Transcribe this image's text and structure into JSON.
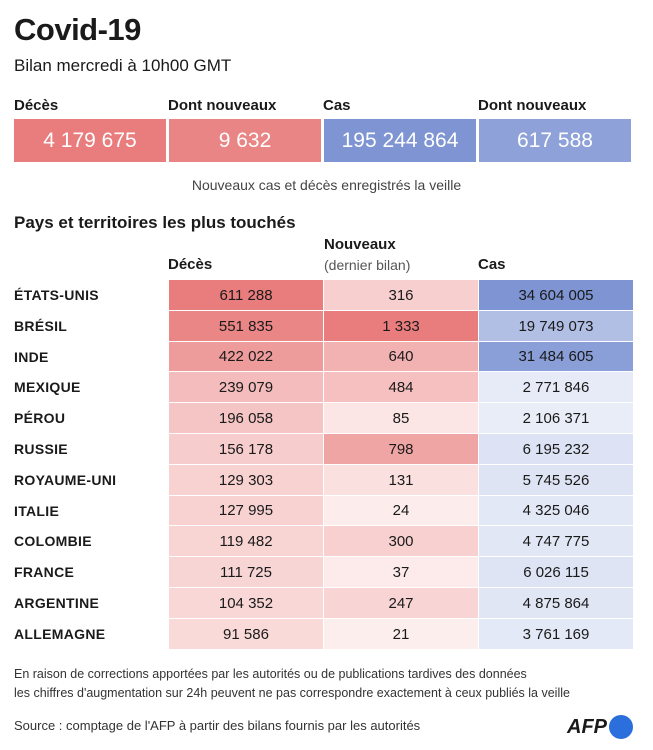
{
  "header": {
    "title": "Covid-19",
    "subtitle": "Bilan mercredi à 10h00 GMT"
  },
  "summary": [
    {
      "label": "Décès",
      "value": "4 179 675",
      "color": "#e97c7c"
    },
    {
      "label": "Dont nouveaux",
      "value": "9 632",
      "color": "#ea8585"
    },
    {
      "label": "Cas",
      "value": "195 244 864",
      "color": "#7f95d3"
    },
    {
      "label": "Dont nouveaux",
      "value": "617 588",
      "color": "#8ea1d8"
    }
  ],
  "summary_note": "Nouveaux cas et décès enregistrés la veille",
  "chart_data": {
    "type": "table",
    "title": "Pays et territoires les plus touchés",
    "columns": [
      {
        "key": "deces",
        "label": "Décès",
        "sublabel": ""
      },
      {
        "key": "nouveaux",
        "label": "Nouveaux",
        "sublabel": "(dernier bilan)"
      },
      {
        "key": "cas",
        "label": "Cas",
        "sublabel": ""
      }
    ],
    "rows": [
      {
        "country": "ÉTATS-UNIS",
        "deces": 611288,
        "nouveaux": 316,
        "cas": 34604005
      },
      {
        "country": "BRÉSIL",
        "deces": 551835,
        "nouveaux": 1333,
        "cas": 19749073
      },
      {
        "country": "INDE",
        "deces": 422022,
        "nouveaux": 640,
        "cas": 31484605
      },
      {
        "country": "MEXIQUE",
        "deces": 239079,
        "nouveaux": 484,
        "cas": 2771846
      },
      {
        "country": "PÉROU",
        "deces": 196058,
        "nouveaux": 85,
        "cas": 2106371
      },
      {
        "country": "RUSSIE",
        "deces": 156178,
        "nouveaux": 798,
        "cas": 6195232
      },
      {
        "country": "ROYAUME-UNI",
        "deces": 129303,
        "nouveaux": 131,
        "cas": 5745526
      },
      {
        "country": "ITALIE",
        "deces": 127995,
        "nouveaux": 24,
        "cas": 4325046
      },
      {
        "country": "COLOMBIE",
        "deces": 119482,
        "nouveaux": 300,
        "cas": 4747775
      },
      {
        "country": "FRANCE",
        "deces": 111725,
        "nouveaux": 37,
        "cas": 6026115
      },
      {
        "country": "ARGENTINE",
        "deces": 104352,
        "nouveaux": 247,
        "cas": 4875864
      },
      {
        "country": "ALLEMAGNE",
        "deces": 91586,
        "nouveaux": 21,
        "cas": 3761169
      }
    ],
    "colors": {
      "red": "#e97c7c",
      "blue": "#7f95d3",
      "base_red": "#fdf1f0",
      "base_blue": "#eef1fa"
    }
  },
  "footnote": {
    "line1": "En raison de corrections apportées par les autorités ou de publications tardives des données",
    "line2": "les chiffres d'augmentation sur 24h peuvent ne pas correspondre exactement à ceux publiés la veille",
    "source": "Source : comptage de l'AFP à partir des bilans fournis par les autorités"
  },
  "logo": {
    "text": "AFP",
    "color": "#2a6fdb"
  }
}
